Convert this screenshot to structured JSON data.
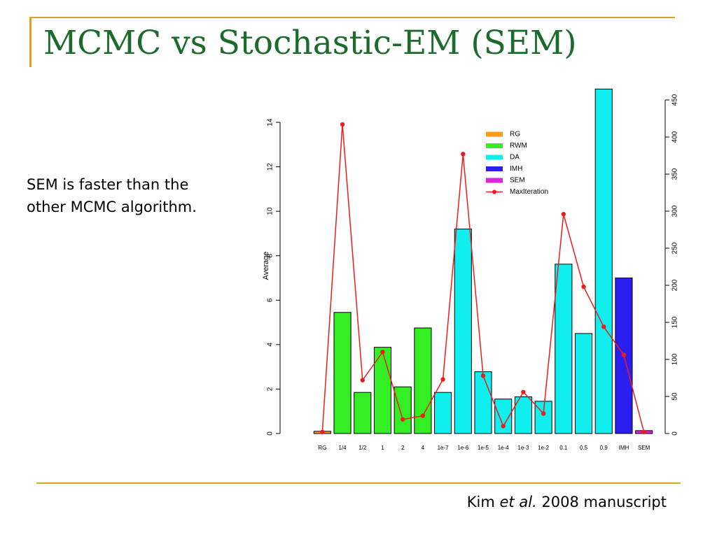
{
  "slide": {
    "title": "MCMC vs Stochastic-EM (SEM)",
    "body": "SEM is faster than the other MCMC algorithm.",
    "citation": {
      "author": "Kim",
      "etal": "et al.",
      "rest": "2008 manuscript"
    },
    "accent_color": "#d9a428",
    "title_color": "#1c6b2b"
  },
  "chart_data": {
    "type": "bar",
    "ylabel": "Average",
    "ylim": [
      0,
      14
    ],
    "y_ticks": [
      0,
      2,
      4,
      6,
      8,
      10,
      12,
      14
    ],
    "y2lim": [
      0,
      450
    ],
    "y2_ticks": [
      0,
      50,
      100,
      150,
      200,
      250,
      300,
      350,
      400,
      450
    ],
    "categories": [
      "RG",
      "1/4",
      "1/2",
      "1",
      "2",
      "4",
      "1e-7",
      "1e-6",
      "1e-5",
      "1e-4",
      "1e-3",
      "1e-2",
      "0.1",
      "0.5",
      "0.9",
      "IMH",
      "SEM"
    ],
    "groups": [
      "RG",
      "RWM",
      "RWM",
      "RWM",
      "RWM",
      "RWM",
      "DA",
      "DA",
      "DA",
      "DA",
      "DA",
      "DA",
      "DA",
      "DA",
      "DA",
      "IMH",
      "SEM"
    ],
    "values": [
      0.1,
      5.45,
      1.85,
      3.88,
      2.1,
      4.75,
      1.85,
      9.2,
      2.78,
      1.55,
      1.65,
      1.45,
      7.62,
      4.5,
      15.5,
      7.0,
      0.13
    ],
    "series": [
      {
        "name": "MaxIteration",
        "axis": "right",
        "values": [
          2,
          417,
          72,
          110,
          19,
          24,
          73,
          377,
          78,
          10,
          56,
          27,
          296,
          198,
          144,
          106,
          2
        ]
      }
    ],
    "legend": [
      {
        "name": "RG",
        "color": "#ff9a1a"
      },
      {
        "name": "RWM",
        "color": "#33ee22"
      },
      {
        "name": "DA",
        "color": "#11eeee"
      },
      {
        "name": "IMH",
        "color": "#2b1ff0"
      },
      {
        "name": "SEM",
        "color": "#dd22dd"
      },
      {
        "name": "MaxIteration",
        "color": "#ee1c1c",
        "line": true
      }
    ],
    "legend_position": "top-right"
  }
}
